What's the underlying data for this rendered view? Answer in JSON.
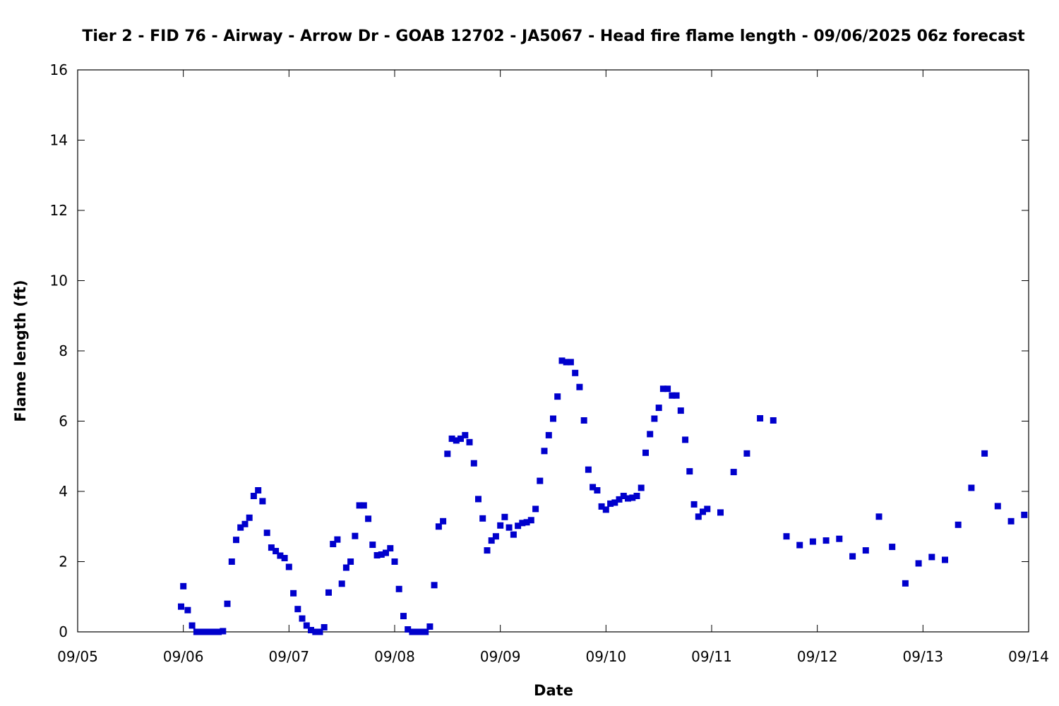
{
  "chart_data": {
    "type": "scatter",
    "title": "Tier 2 - FID 76 - Airway - Arrow Dr - GOAB 12702 - JA5067 - Head fire flame length - 09/06/2025 06z forecast",
    "xlabel": "Date",
    "ylabel": "Flame length (ft)",
    "x_ticks": [
      "09/05",
      "09/06",
      "09/07",
      "09/08",
      "09/09",
      "09/10",
      "09/11",
      "09/12",
      "09/13",
      "09/14"
    ],
    "y_ticks": [
      0,
      2,
      4,
      6,
      8,
      10,
      12,
      14,
      16
    ],
    "xlim": [
      "2025-09-05 00:00",
      "2025-09-14 00:00"
    ],
    "ylim": [
      0,
      16
    ],
    "grid": false,
    "marker_color": "#0000cc",
    "series": [
      {
        "points": [
          [
            "2025-09-05 23:30",
            0.72
          ],
          [
            "2025-09-06 00:00",
            1.3
          ],
          [
            "2025-09-06 01:00",
            0.62
          ],
          [
            "2025-09-06 02:00",
            0.18
          ],
          [
            "2025-09-06 03:00",
            0.0
          ],
          [
            "2025-09-06 04:00",
            0.0
          ],
          [
            "2025-09-06 05:00",
            0.0
          ],
          [
            "2025-09-06 06:00",
            0.0
          ],
          [
            "2025-09-06 07:00",
            0.0
          ],
          [
            "2025-09-06 08:00",
            0.0
          ],
          [
            "2025-09-06 09:00",
            0.02
          ],
          [
            "2025-09-06 10:00",
            0.8
          ],
          [
            "2025-09-06 11:00",
            2.0
          ],
          [
            "2025-09-06 12:00",
            2.62
          ],
          [
            "2025-09-06 13:00",
            2.97
          ],
          [
            "2025-09-06 14:00",
            3.07
          ],
          [
            "2025-09-06 15:00",
            3.25
          ],
          [
            "2025-09-06 16:00",
            3.87
          ],
          [
            "2025-09-06 17:00",
            4.03
          ],
          [
            "2025-09-06 18:00",
            3.72
          ],
          [
            "2025-09-06 19:00",
            2.82
          ],
          [
            "2025-09-06 20:00",
            2.4
          ],
          [
            "2025-09-06 21:00",
            2.3
          ],
          [
            "2025-09-06 22:00",
            2.17
          ],
          [
            "2025-09-06 23:00",
            2.1
          ],
          [
            "2025-09-07 00:00",
            1.85
          ],
          [
            "2025-09-07 01:00",
            1.1
          ],
          [
            "2025-09-07 02:00",
            0.65
          ],
          [
            "2025-09-07 03:00",
            0.38
          ],
          [
            "2025-09-07 04:00",
            0.18
          ],
          [
            "2025-09-07 05:00",
            0.05
          ],
          [
            "2025-09-07 06:00",
            0.0
          ],
          [
            "2025-09-07 07:00",
            0.0
          ],
          [
            "2025-09-07 08:00",
            0.13
          ],
          [
            "2025-09-07 09:00",
            1.12
          ],
          [
            "2025-09-07 10:00",
            2.5
          ],
          [
            "2025-09-07 11:00",
            2.63
          ],
          [
            "2025-09-07 12:00",
            1.37
          ],
          [
            "2025-09-07 13:00",
            1.83
          ],
          [
            "2025-09-07 14:00",
            2.0
          ],
          [
            "2025-09-07 15:00",
            2.73
          ],
          [
            "2025-09-07 16:00",
            3.6
          ],
          [
            "2025-09-07 17:00",
            3.6
          ],
          [
            "2025-09-07 18:00",
            3.22
          ],
          [
            "2025-09-07 19:00",
            2.48
          ],
          [
            "2025-09-07 20:00",
            2.18
          ],
          [
            "2025-09-07 21:00",
            2.2
          ],
          [
            "2025-09-07 22:00",
            2.25
          ],
          [
            "2025-09-07 23:00",
            2.38
          ],
          [
            "2025-09-08 00:00",
            2.0
          ],
          [
            "2025-09-08 01:00",
            1.22
          ],
          [
            "2025-09-08 02:00",
            0.45
          ],
          [
            "2025-09-08 03:00",
            0.07
          ],
          [
            "2025-09-08 04:00",
            0.0
          ],
          [
            "2025-09-08 05:00",
            0.0
          ],
          [
            "2025-09-08 06:00",
            0.0
          ],
          [
            "2025-09-08 07:00",
            0.0
          ],
          [
            "2025-09-08 08:00",
            0.15
          ],
          [
            "2025-09-08 09:00",
            1.33
          ],
          [
            "2025-09-08 10:00",
            3.0
          ],
          [
            "2025-09-08 11:00",
            3.15
          ],
          [
            "2025-09-08 12:00",
            5.07
          ],
          [
            "2025-09-08 13:00",
            5.5
          ],
          [
            "2025-09-08 14:00",
            5.45
          ],
          [
            "2025-09-08 15:00",
            5.5
          ],
          [
            "2025-09-08 16:00",
            5.6
          ],
          [
            "2025-09-08 17:00",
            5.4
          ],
          [
            "2025-09-08 18:00",
            4.8
          ],
          [
            "2025-09-08 19:00",
            3.78
          ],
          [
            "2025-09-08 20:00",
            3.23
          ],
          [
            "2025-09-08 21:00",
            2.32
          ],
          [
            "2025-09-08 22:00",
            2.6
          ],
          [
            "2025-09-08 23:00",
            2.72
          ],
          [
            "2025-09-09 00:00",
            3.03
          ],
          [
            "2025-09-09 01:00",
            3.27
          ],
          [
            "2025-09-09 02:00",
            2.97
          ],
          [
            "2025-09-09 03:00",
            2.77
          ],
          [
            "2025-09-09 04:00",
            3.02
          ],
          [
            "2025-09-09 05:00",
            3.1
          ],
          [
            "2025-09-09 06:00",
            3.12
          ],
          [
            "2025-09-09 07:00",
            3.18
          ],
          [
            "2025-09-09 08:00",
            3.5
          ],
          [
            "2025-09-09 09:00",
            4.3
          ],
          [
            "2025-09-09 10:00",
            5.15
          ],
          [
            "2025-09-09 11:00",
            5.6
          ],
          [
            "2025-09-09 12:00",
            6.07
          ],
          [
            "2025-09-09 13:00",
            6.7
          ],
          [
            "2025-09-09 14:00",
            7.72
          ],
          [
            "2025-09-09 15:00",
            7.68
          ],
          [
            "2025-09-09 16:00",
            7.68
          ],
          [
            "2025-09-09 17:00",
            7.37
          ],
          [
            "2025-09-09 18:00",
            6.97
          ],
          [
            "2025-09-09 19:00",
            6.02
          ],
          [
            "2025-09-09 20:00",
            4.62
          ],
          [
            "2025-09-09 21:00",
            4.12
          ],
          [
            "2025-09-09 22:00",
            4.03
          ],
          [
            "2025-09-09 23:00",
            3.57
          ],
          [
            "2025-09-10 00:00",
            3.48
          ],
          [
            "2025-09-10 01:00",
            3.65
          ],
          [
            "2025-09-10 02:00",
            3.68
          ],
          [
            "2025-09-10 03:00",
            3.77
          ],
          [
            "2025-09-10 04:00",
            3.87
          ],
          [
            "2025-09-10 05:00",
            3.8
          ],
          [
            "2025-09-10 06:00",
            3.82
          ],
          [
            "2025-09-10 07:00",
            3.87
          ],
          [
            "2025-09-10 08:00",
            4.1
          ],
          [
            "2025-09-10 09:00",
            5.1
          ],
          [
            "2025-09-10 10:00",
            5.63
          ],
          [
            "2025-09-10 11:00",
            6.07
          ],
          [
            "2025-09-10 12:00",
            6.38
          ],
          [
            "2025-09-10 13:00",
            6.92
          ],
          [
            "2025-09-10 14:00",
            6.92
          ],
          [
            "2025-09-10 15:00",
            6.73
          ],
          [
            "2025-09-10 16:00",
            6.73
          ],
          [
            "2025-09-10 17:00",
            6.3
          ],
          [
            "2025-09-10 18:00",
            5.47
          ],
          [
            "2025-09-10 19:00",
            4.57
          ],
          [
            "2025-09-10 20:00",
            3.63
          ],
          [
            "2025-09-10 21:00",
            3.28
          ],
          [
            "2025-09-10 22:00",
            3.42
          ],
          [
            "2025-09-10 23:00",
            3.5
          ],
          [
            "2025-09-11 02:00",
            3.4
          ],
          [
            "2025-09-11 05:00",
            4.55
          ],
          [
            "2025-09-11 08:00",
            5.08
          ],
          [
            "2025-09-11 11:00",
            6.08
          ],
          [
            "2025-09-11 14:00",
            6.02
          ],
          [
            "2025-09-11 17:00",
            2.72
          ],
          [
            "2025-09-11 20:00",
            2.47
          ],
          [
            "2025-09-11 23:00",
            2.57
          ],
          [
            "2025-09-12 02:00",
            2.6
          ],
          [
            "2025-09-12 05:00",
            2.65
          ],
          [
            "2025-09-12 08:00",
            2.15
          ],
          [
            "2025-09-12 11:00",
            2.32
          ],
          [
            "2025-09-12 14:00",
            3.28
          ],
          [
            "2025-09-12 17:00",
            2.42
          ],
          [
            "2025-09-12 20:00",
            1.38
          ],
          [
            "2025-09-12 23:00",
            1.95
          ],
          [
            "2025-09-13 02:00",
            2.13
          ],
          [
            "2025-09-13 05:00",
            2.05
          ],
          [
            "2025-09-13 08:00",
            3.05
          ],
          [
            "2025-09-13 11:00",
            4.1
          ],
          [
            "2025-09-13 14:00",
            5.08
          ],
          [
            "2025-09-13 17:00",
            3.58
          ],
          [
            "2025-09-13 20:00",
            3.15
          ],
          [
            "2025-09-13 23:00",
            3.33
          ]
        ]
      }
    ]
  }
}
